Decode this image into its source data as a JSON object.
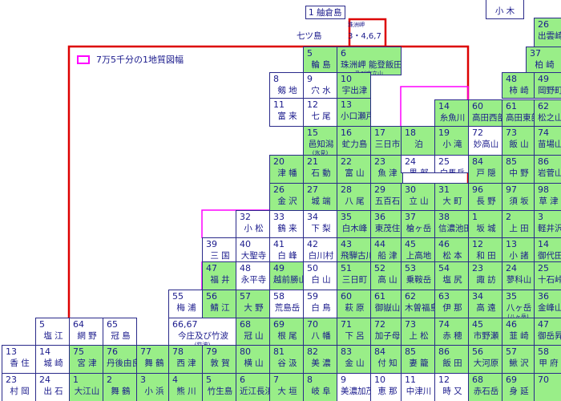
{
  "legend": {
    "label": "7万5千分の1地質図幅",
    "swatch_color": "#ff00ff"
  },
  "colors": {
    "survey_area_border": "#dd0000",
    "quarter_sheet_border": "#ff00ff",
    "available_fill": "#99ee88",
    "grid_line": "#2a2a8a",
    "text": "#1a1a8c"
  },
  "islands": [
    {
      "id": "hekura",
      "num": "1",
      "name": "舳倉島"
    },
    {
      "id": "nanatsu",
      "name": "七ツ島"
    }
  ],
  "top_left_cell": {
    "num": "3・4,6,7",
    "name": "珠洲岬"
  },
  "top_right_cell": {
    "name": "小 木"
  },
  "cells": [
    {
      "id": "c5-wajima",
      "num": "5",
      "name": "輪 島",
      "g": true
    },
    {
      "id": "c6-suzu",
      "num": "6",
      "name": "珠洲岬 能登飯田",
      "name2": "及び宝立山",
      "g": true
    },
    {
      "id": "c8-fugeshi",
      "num": "8",
      "name": "剱 地",
      "g": false
    },
    {
      "id": "c9-anamizu",
      "num": "9",
      "name": "穴 水",
      "g": false
    },
    {
      "id": "c10-ushitsu",
      "num": "10",
      "name": "宇出津",
      "g": true
    },
    {
      "id": "c11-tomiki",
      "num": "11",
      "name": "富 来",
      "g": false
    },
    {
      "id": "c12-nanao",
      "num": "12",
      "name": "七 尾",
      "g": false
    },
    {
      "id": "c13-kotakase",
      "num": "13",
      "name": "小口瀬戸",
      "g": true
    },
    {
      "id": "c14-itoigawa",
      "num": "14",
      "name": "糸魚川",
      "g": true
    },
    {
      "id": "c15-himi",
      "num": "15",
      "name": "邑知潟",
      "name2": "(氷見)",
      "g": true
    },
    {
      "id": "c16-himi2",
      "num": "16",
      "name": "虻力島",
      "g": true
    },
    {
      "id": "c17-sankaichi",
      "num": "17",
      "name": "三日市",
      "g": true
    },
    {
      "id": "c18-tomari",
      "num": "18",
      "name": "泊",
      "g": true
    },
    {
      "id": "c19-otaki",
      "num": "19",
      "name": "小 滝",
      "g": true
    },
    {
      "id": "c20-tsubata",
      "num": "20",
      "name": "津 幡",
      "g": true
    },
    {
      "id": "c21-isurugi",
      "num": "21",
      "name": "石 動",
      "g": true
    },
    {
      "id": "c22-toyama",
      "num": "22",
      "name": "富 山",
      "g": true
    },
    {
      "id": "c23-uozu",
      "num": "23",
      "name": "魚 津",
      "g": true
    },
    {
      "id": "c24-kurobe",
      "num": "24",
      "name": "黒 部",
      "g": false
    },
    {
      "id": "c25-hakuba",
      "num": "25",
      "name": "白馬岳",
      "g": false
    },
    {
      "id": "c26-kanazawa",
      "num": "26",
      "name": "金 沢",
      "g": true
    },
    {
      "id": "c27-johana",
      "num": "27",
      "name": "城 端",
      "g": true
    },
    {
      "id": "c28-yatsuo",
      "num": "28",
      "name": "八 尾",
      "g": true
    },
    {
      "id": "c29-goka",
      "num": "29",
      "name": "五百石",
      "g": true
    },
    {
      "id": "c30-tateyama",
      "num": "30",
      "name": "立 山",
      "g": true
    },
    {
      "id": "c31-omachi",
      "num": "31",
      "name": "大 町",
      "g": true
    },
    {
      "id": "c32-komatsu",
      "num": "32",
      "name": "小 松",
      "g": false
    },
    {
      "id": "c33-tsurugi",
      "num": "33",
      "name": "鶴 来",
      "g": false
    },
    {
      "id": "c34-shimonashi",
      "num": "34",
      "name": "下 梨",
      "g": false
    },
    {
      "id": "c35-hakusan",
      "num": "35",
      "name": "白木峰",
      "g": true
    },
    {
      "id": "c36-higashimo",
      "num": "36",
      "name": "東茂住",
      "g": true
    },
    {
      "id": "c37-yarigatake",
      "num": "37",
      "name": "槍ヶ岳",
      "g": true
    },
    {
      "id": "c38-shinano",
      "num": "38",
      "name": "信濃池田",
      "g": true
    },
    {
      "id": "c39-mikuni",
      "num": "39",
      "name": "三 国",
      "g": false
    },
    {
      "id": "c40-daishoji",
      "num": "40",
      "name": "大聖寺",
      "g": false
    },
    {
      "id": "c41-shiramine",
      "num": "41",
      "name": "白 峰",
      "g": false
    },
    {
      "id": "c42-shirakawa",
      "num": "42",
      "name": "白川村",
      "g": false
    },
    {
      "id": "c43-hidafuru",
      "num": "43",
      "name": "飛騨古川",
      "g": true
    },
    {
      "id": "c44-funatsu",
      "num": "44",
      "name": "船 津",
      "g": true
    },
    {
      "id": "c45-kamikochi",
      "num": "45",
      "name": "上高地",
      "g": true
    },
    {
      "id": "c46-matsumoto",
      "num": "46",
      "name": "松 本",
      "g": true
    },
    {
      "id": "c47-fukui",
      "num": "47",
      "name": "福 井",
      "g": true
    },
    {
      "id": "c48-eiheiji",
      "num": "48",
      "name": "永平寺",
      "g": false
    },
    {
      "id": "c49-echizen",
      "num": "49",
      "name": "越前勝山",
      "g": true
    },
    {
      "id": "c50-hakusan2",
      "num": "50",
      "name": "白 山",
      "g": false
    },
    {
      "id": "c51-mikkamachi",
      "num": "51",
      "name": "三日町",
      "g": true
    },
    {
      "id": "c52-takayama",
      "num": "52",
      "name": "高 山",
      "g": true
    },
    {
      "id": "c53-norikura",
      "num": "53",
      "name": "乗鞍岳",
      "g": true
    },
    {
      "id": "c54-shiojiri",
      "num": "54",
      "name": "塩 尻",
      "g": true
    },
    {
      "id": "c55-umeura",
      "num": "55",
      "name": "梅 浦",
      "g": false
    },
    {
      "id": "c56-sabae",
      "num": "56",
      "name": "鯖 江",
      "g": true
    },
    {
      "id": "c57-ono",
      "num": "57",
      "name": "大 野",
      "g": true
    },
    {
      "id": "c58-arashima",
      "num": "58",
      "name": "荒島岳",
      "g": false
    },
    {
      "id": "c59-shirotori",
      "num": "59",
      "name": "白 鳥",
      "g": false
    },
    {
      "id": "c60-hagiwara",
      "num": "60",
      "name": "萩 原",
      "g": true
    },
    {
      "id": "c61-ontake",
      "num": "61",
      "name": "御嶽山",
      "g": true
    },
    {
      "id": "c62-kisofuku",
      "num": "62",
      "name": "木曽福島",
      "g": true
    },
    {
      "id": "c63-ina",
      "num": "63",
      "name": "伊 那",
      "g": true
    },
    {
      "id": "c64-amino",
      "num": "64",
      "name": "網 野",
      "g": false
    },
    {
      "id": "c65-kanmuri",
      "num": "65",
      "name": "冠 島",
      "g": false
    },
    {
      "id": "c66-imajo",
      "num": "66,67",
      "name": "今庄及び竹波",
      "name2": "(竹波)",
      "g": false
    },
    {
      "id": "c68-kanmuri",
      "num": "68",
      "name": "冠 山",
      "g": true
    },
    {
      "id": "c69-nebo",
      "num": "69",
      "name": "根 尾",
      "g": true
    },
    {
      "id": "c70-hachiman",
      "num": "70",
      "name": "八 幡",
      "g": true
    },
    {
      "id": "c71-gero",
      "num": "71",
      "name": "下 呂",
      "g": true
    },
    {
      "id": "c72-kashimo",
      "num": "72",
      "name": "加子母",
      "g": true
    },
    {
      "id": "c73-agematsu",
      "num": "73",
      "name": "上 松",
      "g": true
    },
    {
      "id": "c74-akaho",
      "num": "74",
      "name": "赤 穂",
      "g": true
    },
    {
      "id": "c75-miyazu",
      "num": "75",
      "name": "宮 津",
      "g": true
    },
    {
      "id": "c76-tango",
      "num": "76",
      "name": "丹後由良",
      "g": true
    },
    {
      "id": "c77-maizuru",
      "num": "77",
      "name": "舞 鶴",
      "g": true
    },
    {
      "id": "c78-nishizu",
      "num": "78",
      "name": "西 津",
      "g": true
    },
    {
      "id": "c79-tsuruga",
      "num": "79",
      "name": "敦 賀",
      "g": true
    },
    {
      "id": "c80-yokoyama",
      "num": "80",
      "name": "横 山",
      "g": true
    },
    {
      "id": "c81-tanigumi",
      "num": "81",
      "name": "谷 汲",
      "g": true
    },
    {
      "id": "c82-mino",
      "num": "82",
      "name": "美 濃",
      "g": true
    },
    {
      "id": "c83-kanayama",
      "num": "83",
      "name": "金 山",
      "g": true
    },
    {
      "id": "c84-tsukechi",
      "num": "84",
      "name": "付 知",
      "g": true
    },
    {
      "id": "c85-tsumago",
      "num": "85",
      "name": "妻 籠",
      "g": true
    },
    {
      "id": "c86-iida",
      "num": "86",
      "name": "飯 田",
      "g": true
    },
    {
      "id": "r1-oeyama",
      "num": "1",
      "name": "大江山",
      "g": true
    },
    {
      "id": "r2-maizuru",
      "num": "2",
      "name": "舞 鶴",
      "g": true
    },
    {
      "id": "r3-obama",
      "num": "3",
      "name": "小 浜",
      "g": true
    },
    {
      "id": "r4-kumagawa",
      "num": "4",
      "name": "熊 川",
      "g": true
    },
    {
      "id": "r5-takeshima",
      "num": "5",
      "name": "竹生島",
      "g": true
    },
    {
      "id": "r6-omi",
      "num": "6",
      "name": "近江長浜",
      "g": true
    },
    {
      "id": "r7-ogaki",
      "num": "7",
      "name": "大 垣",
      "g": true
    },
    {
      "id": "r8-gifu",
      "num": "8",
      "name": "岐 阜",
      "g": true
    },
    {
      "id": "r9-minokamo",
      "num": "9",
      "name": "美濃加茂",
      "g": false
    },
    {
      "id": "r10-ena",
      "num": "10",
      "name": "恵 那",
      "g": false
    },
    {
      "id": "r11-nakatsu",
      "num": "11",
      "name": "中津川",
      "g": false
    },
    {
      "id": "r12-tokimata",
      "num": "12",
      "name": "時 又",
      "g": false
    },
    {
      "id": "w5-shiotsu",
      "num": "5",
      "name": "塩 江",
      "g": false
    },
    {
      "id": "w13-kasumi",
      "num": "13",
      "name": "香 住",
      "g": false
    },
    {
      "id": "w14-kinosaki",
      "num": "14",
      "name": "城 崎",
      "g": false
    },
    {
      "id": "w23-muraoka",
      "num": "23",
      "name": "村 岡",
      "g": false
    },
    {
      "id": "w24-izushi",
      "num": "24",
      "name": "出 石",
      "g": false
    },
    {
      "id": "e26-izumo",
      "num": "26",
      "name": "出雲崎",
      "g": true
    },
    {
      "id": "e37-kashiwazaki",
      "num": "37",
      "name": "柏 崎",
      "g": true
    },
    {
      "id": "e48-kashiwazaki2",
      "num": "48",
      "name": "柿 崎",
      "g": true
    },
    {
      "id": "e49-okada",
      "num": "49",
      "name": "岡野町",
      "g": true
    },
    {
      "id": "e59-itoigawa2",
      "num": "59",
      "name": "",
      "g": true
    },
    {
      "id": "e60-takada",
      "num": "60",
      "name": "高田西部",
      "g": true
    },
    {
      "id": "e61-takada2",
      "num": "61",
      "name": "高田東部",
      "g": true
    },
    {
      "id": "e62-matsu",
      "num": "62",
      "name": "松之山温泉",
      "g": true
    },
    {
      "id": "e72-myoko",
      "num": "72",
      "name": "妙高山",
      "g": false
    },
    {
      "id": "e73-iiyama",
      "num": "73",
      "name": "飯 山",
      "g": true
    },
    {
      "id": "e74-naeba",
      "num": "74",
      "name": "苗場山",
      "g": true
    },
    {
      "id": "e84-togakushi",
      "num": "84",
      "name": "戸 隠",
      "g": true
    },
    {
      "id": "e85-nakano",
      "num": "85",
      "name": "中 野",
      "g": true
    },
    {
      "id": "e86-iwasuge",
      "num": "86",
      "name": "岩菅山",
      "g": true
    },
    {
      "id": "e96-nagano",
      "num": "96",
      "name": "長 野",
      "g": true
    },
    {
      "id": "e97-suzaka",
      "num": "97",
      "name": "須 坂",
      "g": true
    },
    {
      "id": "e98-kusatsu",
      "num": "98",
      "name": "草 津",
      "g": true
    },
    {
      "id": "e1-sakaki",
      "num": "1",
      "name": "坂 城",
      "g": true
    },
    {
      "id": "e2-ueda",
      "num": "2",
      "name": "上 田",
      "g": true
    },
    {
      "id": "e3-karuizawa",
      "num": "3",
      "name": "軽井沢",
      "g": true
    },
    {
      "id": "e12-wada",
      "num": "12",
      "name": "和 田",
      "g": true
    },
    {
      "id": "e13-komoro",
      "num": "13",
      "name": "小 諸",
      "g": true
    },
    {
      "id": "e14-mikage",
      "num": "14",
      "name": "御代田",
      "g": true
    },
    {
      "id": "e23-suwa",
      "num": "23",
      "name": "諏 訪",
      "g": true
    },
    {
      "id": "e24-tateshina",
      "num": "24",
      "name": "蓼科山",
      "g": true
    },
    {
      "id": "e25-jumonji",
      "num": "25",
      "name": "十石峠",
      "g": true
    },
    {
      "id": "e34-takato",
      "num": "34",
      "name": "高 遠",
      "g": true
    },
    {
      "id": "e35-yatsu",
      "num": "35",
      "name": "八ヶ岳",
      "name2": "(八ヶ岳)",
      "g": true
    },
    {
      "id": "e36-kinpu",
      "num": "36",
      "name": "金峰山",
      "g": true
    },
    {
      "id": "e45-ichinose",
      "num": "45",
      "name": "市野瀬",
      "g": true
    },
    {
      "id": "e46-nirasaki",
      "num": "46",
      "name": "韮 崎",
      "g": true
    },
    {
      "id": "e47-mitake",
      "num": "47",
      "name": "御岳昇仙峡",
      "g": true
    },
    {
      "id": "e56-okawara",
      "num": "56",
      "name": "大河原",
      "g": true
    },
    {
      "id": "e57-kajikazawa",
      "num": "57",
      "name": "鰍 沢",
      "g": true
    },
    {
      "id": "e58-kofu",
      "num": "58",
      "name": "甲 府",
      "g": true
    },
    {
      "id": "e68-akaishi",
      "num": "68",
      "name": "赤石岳",
      "g": true
    },
    {
      "id": "e69-minobu",
      "num": "69",
      "name": "身 延",
      "g": true
    },
    {
      "id": "e70-shimobe",
      "num": "70",
      "name": "",
      "g": true
    }
  ]
}
